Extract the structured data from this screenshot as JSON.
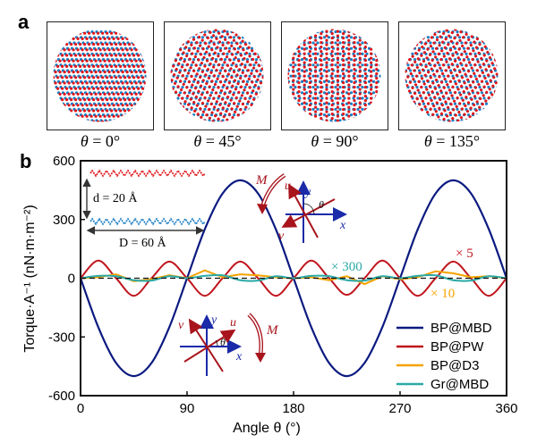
{
  "panel_a": {
    "label": "a",
    "structures": [
      {
        "theta_symbol": "θ",
        "caption": " = 0°",
        "angle": 0
      },
      {
        "theta_symbol": "θ",
        "caption": " = 45°",
        "angle": 45
      },
      {
        "theta_symbol": "θ",
        "caption": " = 90°",
        "angle": 90
      },
      {
        "theta_symbol": "θ",
        "caption": " = 135°",
        "angle": 135
      }
    ],
    "colors": {
      "top_layer": "#e0161b",
      "bottom_layer": "#1b7fc4"
    }
  },
  "panel_b": {
    "label": "b",
    "inset_structure": {
      "d_label": "d = 20 Å",
      "D_label": "D = 60 Å"
    },
    "inset_axes_top": {
      "M": "M",
      "u": "u",
      "v": "v",
      "x": "x",
      "y": "y",
      "theta": "θ"
    },
    "inset_axes_bottom": {
      "M": "M",
      "u": "u",
      "v": "v",
      "x": "x",
      "y": "y",
      "theta": "θ"
    },
    "annotations": {
      "x300": "× 300",
      "x5": "× 5",
      "x10": "× 10"
    }
  },
  "chart_data": {
    "type": "line",
    "title": "",
    "xlabel": "Angle θ (°)",
    "ylabel": "Torque·A⁻¹ (nN·m·m⁻²)",
    "xlim": [
      0,
      360
    ],
    "ylim": [
      -600,
      600
    ],
    "xticks": [
      0,
      90,
      180,
      270,
      360
    ],
    "yticks": [
      -600,
      -300,
      0,
      300,
      600
    ],
    "xtick_labels": [
      "0",
      "90",
      "180",
      "270",
      "360"
    ],
    "ytick_labels": [
      "-600",
      "-300",
      "0",
      "300",
      "600"
    ],
    "grid": false,
    "zero_line": "dashed",
    "legend_position": "bottom-right",
    "x": [
      0,
      15,
      30,
      45,
      60,
      75,
      90,
      105,
      120,
      135,
      150,
      165,
      180,
      195,
      210,
      225,
      240,
      255,
      270,
      285,
      300,
      315,
      330,
      345,
      360
    ],
    "series": [
      {
        "name": "BP@MBD",
        "color": "#0b1a80",
        "scale_note": "",
        "values": [
          0,
          -250,
          -433,
          -500,
          -433,
          -250,
          0,
          250,
          433,
          500,
          433,
          250,
          0,
          -250,
          -433,
          -500,
          -433,
          -250,
          0,
          250,
          433,
          500,
          433,
          250,
          0
        ]
      },
      {
        "name": "BP@PW",
        "color": "#c0151d",
        "scale_note": "× 5",
        "values": [
          0,
          90,
          0,
          -90,
          0,
          85,
          0,
          -90,
          0,
          85,
          0,
          -90,
          0,
          90,
          0,
          -85,
          0,
          90,
          0,
          -90,
          0,
          85,
          0,
          -90,
          0
        ]
      },
      {
        "name": "BP@D3",
        "color": "#f5a300",
        "scale_note": "× 10",
        "values": [
          0,
          5,
          20,
          -15,
          -5,
          15,
          0,
          40,
          5,
          20,
          15,
          5,
          0,
          5,
          -10,
          10,
          -30,
          10,
          -5,
          5,
          35,
          25,
          5,
          10,
          0
        ]
      },
      {
        "name": "Gr@MBD",
        "color": "#2aa9a6",
        "scale_note": "× 300",
        "values": [
          0,
          12,
          10,
          -10,
          -12,
          10,
          0,
          12,
          15,
          -10,
          -12,
          10,
          0,
          12,
          10,
          -10,
          -12,
          10,
          0,
          12,
          15,
          -10,
          -12,
          10,
          0
        ]
      }
    ]
  }
}
